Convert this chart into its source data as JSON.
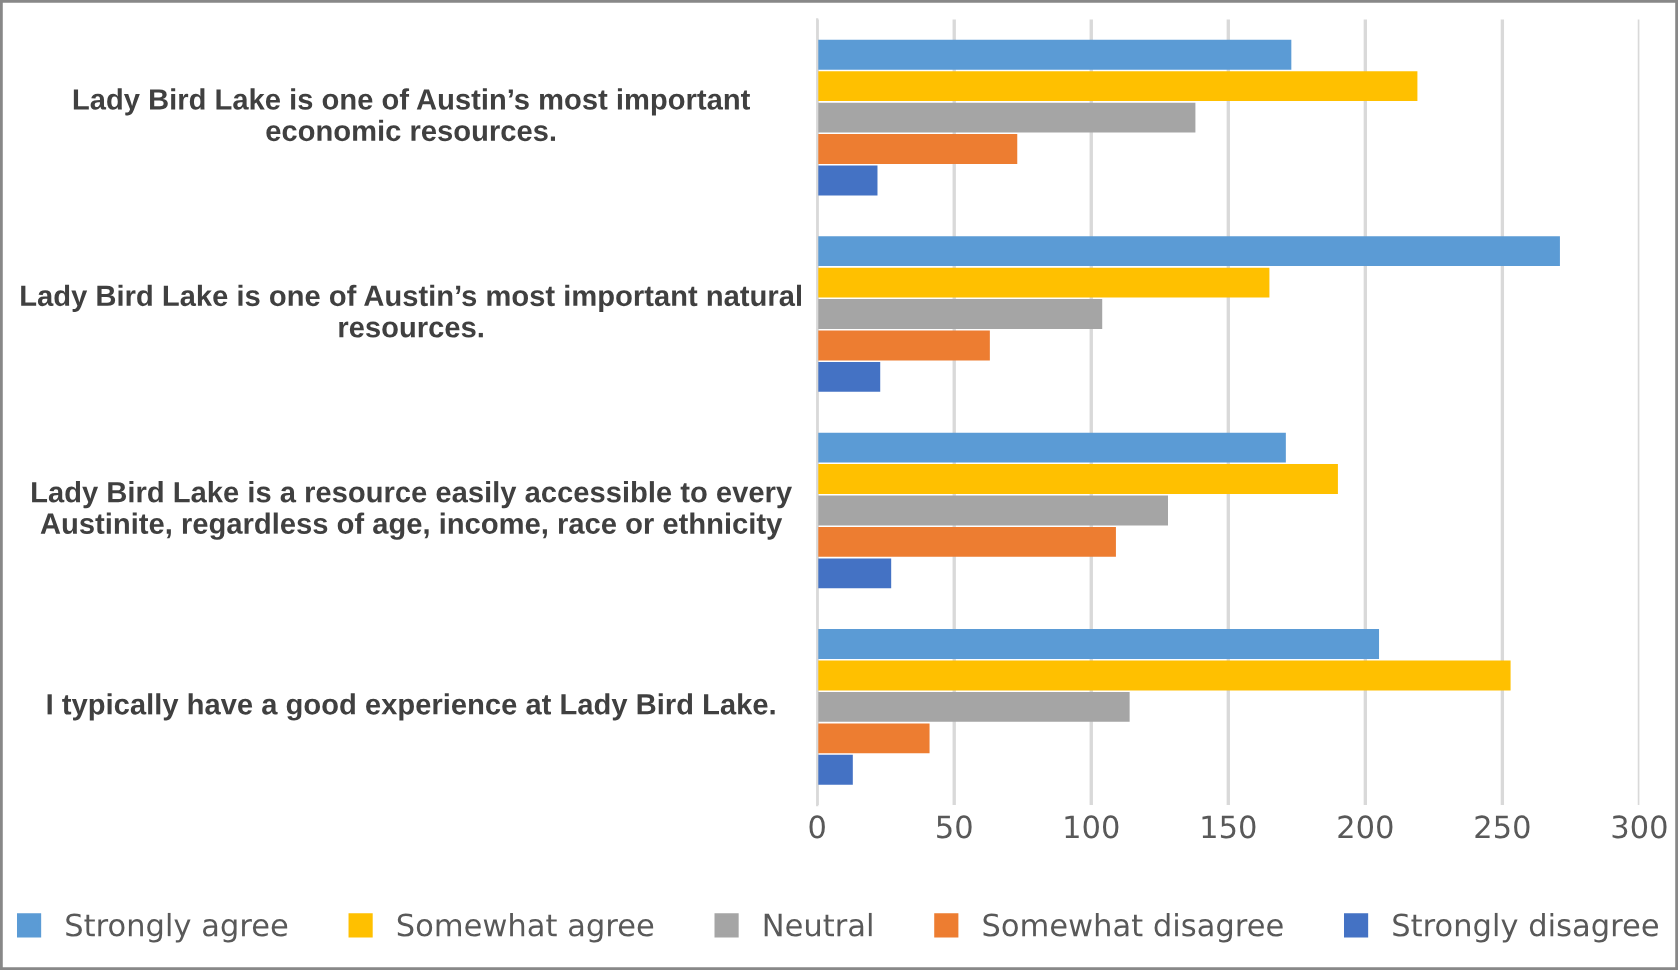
{
  "chart_data": {
    "type": "bar",
    "orientation": "horizontal",
    "categories": [
      "Lady Bird Lake is one of Austin’s most important economic resources.",
      "Lady Bird Lake is one of Austin’s most important natural resources.",
      "Lady Bird Lake is a resource easily accessible to every Austinite, regardless of age, income, race or ethnicity",
      "I typically have a good experience at Lady Bird Lake."
    ],
    "series": [
      {
        "name": "Strongly agree",
        "color": "#5b9bd5",
        "values": [
          173,
          271,
          171,
          205
        ]
      },
      {
        "name": "Somewhat agree",
        "color": "#ffc000",
        "values": [
          219,
          165,
          190,
          253
        ]
      },
      {
        "name": "Neutral",
        "color": "#a5a5a5",
        "values": [
          138,
          104,
          128,
          114
        ]
      },
      {
        "name": "Somewhat disagree",
        "color": "#ed7d31",
        "values": [
          73,
          63,
          109,
          41
        ]
      },
      {
        "name": "Strongly disagree",
        "color": "#4472c4",
        "values": [
          22,
          23,
          27,
          13
        ]
      }
    ],
    "xlim": [
      0,
      300
    ],
    "xticks": [
      0,
      50,
      100,
      150,
      200,
      250,
      300
    ],
    "grid": "x",
    "legend": "bottom"
  }
}
